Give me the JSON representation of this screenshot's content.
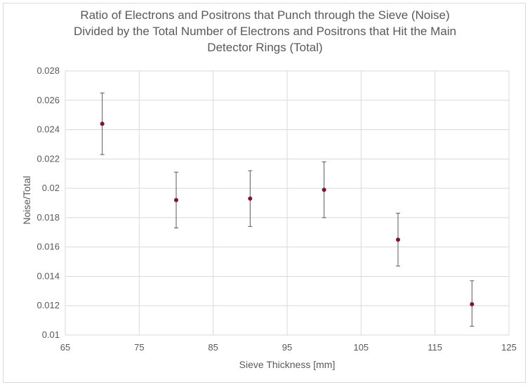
{
  "chart_data": {
    "type": "scatter",
    "title_lines": [
      "Ratio of Electrons and Positrons that Punch through the Sieve (Noise)",
      "Divided by the Total Number of Electrons and Positrons that Hit the Main",
      "Detector Rings (Total)"
    ],
    "xlabel": "Sieve Thickness [mm]",
    "ylabel": "Noise/Total",
    "xlim": [
      65,
      125
    ],
    "ylim": [
      0.01,
      0.028
    ],
    "x_ticks": [
      "65",
      "75",
      "85",
      "95",
      "105",
      "115",
      "125"
    ],
    "y_ticks": [
      "0.01",
      "0.012",
      "0.014",
      "0.016",
      "0.018",
      "0.02",
      "0.022",
      "0.024",
      "0.026",
      "0.028"
    ],
    "grid": true,
    "colors": {
      "marker": "#7b1538",
      "errorbar": "#595959",
      "grid": "#d9d9d9"
    },
    "series": [
      {
        "x": [
          70,
          80,
          90,
          100,
          110,
          120
        ],
        "y": [
          0.0244,
          0.0192,
          0.0193,
          0.0199,
          0.0165,
          0.0121
        ],
        "error_low": [
          0.0223,
          0.0173,
          0.0174,
          0.018,
          0.0147,
          0.0106
        ],
        "error_high": [
          0.0265,
          0.0211,
          0.0212,
          0.0218,
          0.0183,
          0.0137
        ]
      }
    ]
  }
}
